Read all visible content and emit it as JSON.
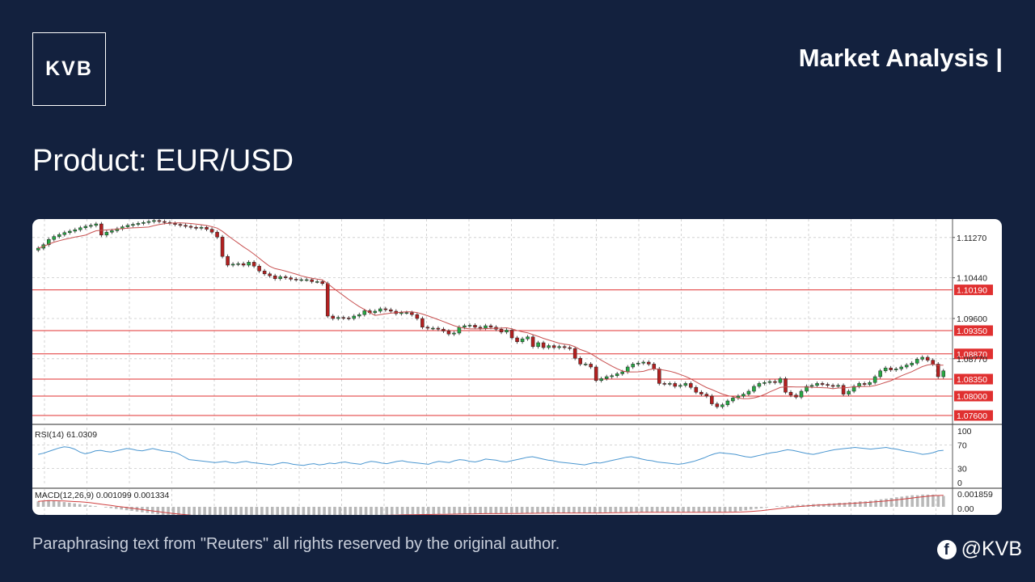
{
  "brand": {
    "logo_text": "KVB"
  },
  "header": {
    "title": "Market Analysis |"
  },
  "product": {
    "title": "Product: EUR/USD"
  },
  "footer": {
    "disclaimer": "Paraphrasing text from \"Reuters\" all rights reserved by the original author."
  },
  "social": {
    "icon": "facebook-icon",
    "handle": "@KVB"
  },
  "colors": {
    "background": "#13213e",
    "bull": "#27a844",
    "bear": "#b32020",
    "level": "#e03030",
    "ma": "#c85050",
    "rsi": "#4a96d0",
    "macd_signal": "#d04040",
    "macd_hist": "#b8b8b8"
  },
  "chart_data": {
    "type": "candlestick",
    "symbol": "EUR/USD",
    "ylim": [
      1.0745,
      1.1165
    ],
    "price_ticks": [
      "1.11270",
      "1.10440",
      "1.09600",
      "1.08770"
    ],
    "support_resistance": [
      "1.10190",
      "1.09350",
      "1.08870",
      "1.08350",
      "1.08000",
      "1.07600"
    ],
    "moving_average": true,
    "candles_close": [
      1.1105,
      1.1112,
      1.1123,
      1.1129,
      1.1133,
      1.1137,
      1.114,
      1.1143,
      1.1147,
      1.115,
      1.1152,
      1.1155,
      1.1132,
      1.1138,
      1.1141,
      1.1145,
      1.1149,
      1.1152,
      1.1154,
      1.1156,
      1.1158,
      1.116,
      1.1162,
      1.116,
      1.1158,
      1.1156,
      1.1154,
      1.1152,
      1.115,
      1.1148,
      1.1146,
      1.1148,
      1.1144,
      1.1138,
      1.1128,
      1.1088,
      1.107,
      1.1072,
      1.1073,
      1.107,
      1.1076,
      1.1068,
      1.1058,
      1.1052,
      1.1048,
      1.1042,
      1.1046,
      1.1044,
      1.1041,
      1.104,
      1.104,
      1.104,
      1.1036,
      1.1036,
      1.1032,
      1.0965,
      1.096,
      1.0962,
      1.0961,
      1.096,
      1.0965,
      1.0968,
      1.0976,
      1.0972,
      1.0975,
      1.098,
      1.0978,
      1.0975,
      1.097,
      1.0972,
      1.0972,
      1.0968,
      1.096,
      1.0942,
      1.094,
      1.094,
      1.0938,
      1.0934,
      1.0928,
      1.093,
      1.0942,
      1.0945,
      1.0946,
      1.0942,
      1.094,
      1.0945,
      1.0942,
      1.0938,
      1.0932,
      1.0936,
      1.092,
      1.0912,
      1.0918,
      1.0922,
      1.0902,
      1.091,
      1.09,
      1.0904,
      1.09,
      1.0902,
      1.09,
      1.0898,
      1.0878,
      1.0866,
      1.0866,
      1.086,
      1.0832,
      1.0836,
      1.084,
      1.0842,
      1.0846,
      1.085,
      1.086,
      1.0866,
      1.0868,
      1.087,
      1.0866,
      1.0856,
      1.0826,
      1.0825,
      1.0826,
      1.082,
      1.0822,
      1.0826,
      1.0818,
      1.0808,
      1.0804,
      1.08,
      1.0784,
      1.0778,
      1.0782,
      1.079,
      1.0796,
      1.08,
      1.0804,
      1.081,
      1.082,
      1.0826,
      1.0828,
      1.083,
      1.0828,
      1.0836,
      1.0808,
      1.0802,
      1.0798,
      1.081,
      1.082,
      1.0822,
      1.0826,
      1.0824,
      1.0822,
      1.082,
      1.0822,
      1.0804,
      1.081,
      1.082,
      1.0826,
      1.0824,
      1.0828,
      1.084,
      1.0852,
      1.0858,
      1.0854,
      1.0856,
      1.086,
      1.0864,
      1.0868,
      1.0876,
      1.088,
      1.0874,
      1.0866,
      1.084,
      1.0852
    ],
    "rsi": {
      "label": "RSI(14) 61.0309",
      "period": 14,
      "last": 61.0309,
      "levels": [
        "100",
        "70",
        "30",
        "0"
      ],
      "values": [
        54,
        56,
        59,
        62,
        65,
        67,
        66,
        63,
        58,
        55,
        57,
        60,
        61,
        59,
        58,
        60,
        62,
        64,
        63,
        61,
        60,
        62,
        64,
        62,
        60,
        59,
        58,
        55,
        50,
        45,
        44,
        43,
        42,
        41,
        40,
        41,
        42,
        40,
        39,
        41,
        42,
        40,
        39,
        38,
        37,
        36,
        38,
        40,
        39,
        37,
        36,
        35,
        37,
        38,
        36,
        37,
        39,
        38,
        40,
        41,
        39,
        38,
        37,
        40,
        42,
        41,
        39,
        38,
        40,
        42,
        43,
        41,
        40,
        39,
        38,
        37,
        40,
        42,
        41,
        40,
        43,
        45,
        44,
        42,
        41,
        43,
        46,
        45,
        44,
        42,
        41,
        43,
        45,
        47,
        49,
        50,
        48,
        46,
        44,
        43,
        41,
        40,
        39,
        38,
        37,
        36,
        38,
        40,
        39,
        41,
        43,
        45,
        47,
        49,
        50,
        48,
        46,
        44,
        43,
        41,
        40,
        39,
        38,
        37,
        38,
        40,
        42,
        45,
        48,
        52,
        55,
        57,
        56,
        55,
        54,
        52,
        50,
        49,
        51,
        53,
        55,
        57,
        58,
        60,
        62,
        61,
        59,
        57,
        55,
        54,
        56,
        58,
        60,
        62,
        63,
        64,
        65,
        66,
        65,
        64,
        63,
        64,
        65,
        66,
        64,
        63,
        61,
        59,
        58,
        56,
        54,
        55,
        57,
        60,
        61
      ]
    },
    "macd": {
      "label": "MACD(12,26,9) 0.001099 0.001334",
      "params": [
        12,
        26,
        9
      ],
      "main": 0.001099,
      "signal": 0.001334,
      "ticks": [
        "0.001859",
        "0.00"
      ],
      "hist": [
        0.0008,
        0.0009,
        0.001,
        0.0009,
        0.0008,
        0.0007,
        0.0006,
        0.0005,
        0.0004,
        0.0003,
        0.0002,
        0.0001,
        0,
        -0.0001,
        -0.0002,
        -0.0003,
        -0.0004,
        -0.0005,
        -0.0006,
        -0.0007,
        -0.0008,
        -0.0009,
        -0.001,
        -0.0011,
        -0.0012,
        -0.0012,
        -0.0013,
        -0.0013,
        -0.0014,
        -0.0014,
        -0.0015,
        -0.0015,
        -0.0016,
        -0.0016,
        -0.0017,
        -0.0017,
        -0.0018,
        -0.0018,
        -0.0018,
        -0.0018,
        -0.0018,
        -0.0018,
        -0.0018,
        -0.0018,
        -0.0017,
        -0.0017,
        -0.0017,
        -0.0017,
        -0.0016,
        -0.0016,
        -0.0016,
        -0.0015,
        -0.0015,
        -0.0015,
        -0.0014,
        -0.0014,
        -0.0014,
        -0.0014,
        -0.0013,
        -0.0013,
        -0.0013,
        -0.0013,
        -0.0012,
        -0.0012,
        -0.0012,
        -0.0012,
        -0.0012,
        -0.0012,
        -0.0012,
        -0.0011,
        -0.0011,
        -0.0011,
        -0.0011,
        -0.0011,
        -0.0011,
        -0.0011,
        -0.0011,
        -0.0011,
        -0.001,
        -0.001,
        -0.001,
        -0.001,
        -0.001,
        -0.001,
        -0.001,
        -0.001,
        -0.001,
        -0.001,
        -0.001,
        -0.001,
        -0.001,
        -0.0009,
        -0.0009,
        -0.0009,
        -0.0009,
        -0.0009,
        -0.0009,
        -0.0009,
        -0.0009,
        -0.0009,
        -0.0009,
        -0.0009,
        -0.0009,
        -0.0009,
        -0.0009,
        -0.0009,
        -0.0009,
        -0.0009,
        -0.0009,
        -0.0008,
        -0.0008,
        -0.0008,
        -0.0008,
        -0.0008,
        -0.0008,
        -0.0008,
        -0.0008,
        -0.0008,
        -0.0008,
        -0.0008,
        -0.0008,
        -0.0008,
        -0.0008,
        -0.0008,
        -0.0008,
        -0.0008,
        -0.0008,
        -0.0008,
        -0.0008,
        -0.0008,
        -0.0008,
        -0.0008,
        -0.0008,
        -0.0007,
        -0.0007,
        -0.0006,
        -0.0005,
        -0.0004,
        -0.0003,
        -0.0002,
        -0.0001,
        0,
        0.0001,
        0.0001,
        0.0002,
        0.0002,
        0.0003,
        0.0003,
        0.0003,
        0.0004,
        0.0004,
        0.0004,
        0.0005,
        0.0005,
        0.0006,
        0.0006,
        0.0007,
        0.0007,
        0.0008,
        0.0008,
        0.0009,
        0.001,
        0.0011,
        0.0012,
        0.0013,
        0.0014,
        0.0015,
        0.0016,
        0.0017,
        0.0017,
        0.0018,
        0.0018,
        0.0018,
        0.0017,
        0.0016
      ]
    }
  }
}
